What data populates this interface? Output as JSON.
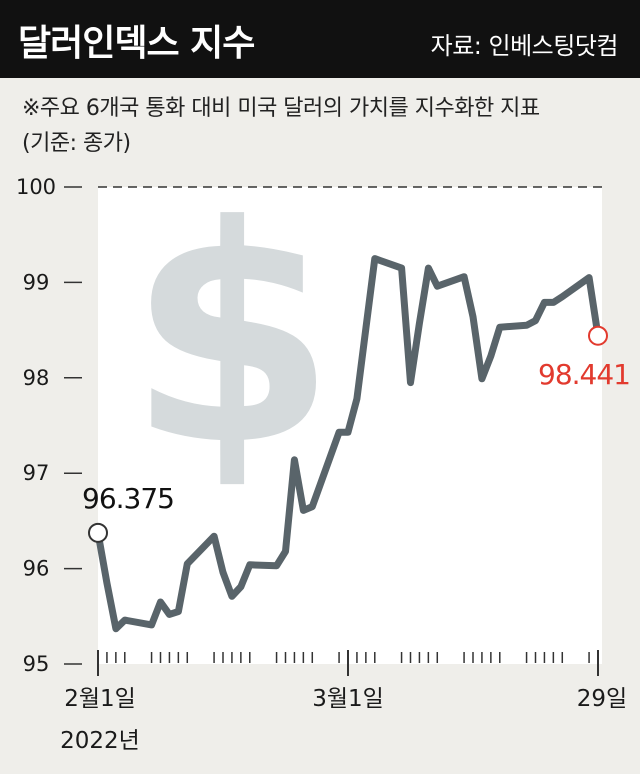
{
  "header": {
    "title": "달러인덱스 지수",
    "source": "자료: 인베스팅닷컴"
  },
  "notes": {
    "line1": "※주요 6개국 통화 대비 미국 달러의 가치를 지수화한 지표",
    "line2": "(기준: 종가)"
  },
  "chart_data": {
    "type": "line",
    "title": "달러인덱스 지수",
    "y_ticks": [
      "100",
      "99",
      "98",
      "97",
      "96",
      "95"
    ],
    "ylim": [
      95,
      100
    ],
    "x_ticks": [
      "2월1일",
      "3월1일",
      "29일"
    ],
    "x_subtitle": "2022년",
    "x_range": [
      "2022-02-01",
      "2022-03-29"
    ],
    "grid": "dashed line at 100",
    "series": [
      {
        "color": "#59646a",
        "x": [
          "2022-02-01",
          "2022-02-02",
          "2022-02-03",
          "2022-02-04",
          "2022-02-07",
          "2022-02-08",
          "2022-02-09",
          "2022-02-10",
          "2022-02-11",
          "2022-02-14",
          "2022-02-15",
          "2022-02-16",
          "2022-02-17",
          "2022-02-18",
          "2022-02-21",
          "2022-02-22",
          "2022-02-23",
          "2022-02-24",
          "2022-02-25",
          "2022-02-28",
          "2022-03-01",
          "2022-03-02",
          "2022-03-03",
          "2022-03-04",
          "2022-03-07",
          "2022-03-08",
          "2022-03-09",
          "2022-03-10",
          "2022-03-11",
          "2022-03-14",
          "2022-03-15",
          "2022-03-16",
          "2022-03-17",
          "2022-03-18",
          "2022-03-21",
          "2022-03-22",
          "2022-03-23",
          "2022-03-24",
          "2022-03-25",
          "2022-03-28",
          "2022-03-29"
        ],
        "values": [
          96.375,
          95.85,
          95.37,
          95.46,
          95.41,
          95.65,
          95.52,
          95.55,
          96.05,
          96.34,
          95.96,
          95.71,
          95.81,
          96.04,
          96.03,
          96.18,
          97.14,
          96.61,
          96.65,
          97.43,
          97.43,
          97.78,
          98.52,
          99.25,
          99.15,
          97.95,
          98.57,
          99.15,
          98.96,
          99.06,
          98.64,
          97.99,
          98.23,
          98.53,
          98.55,
          98.6,
          98.79,
          98.79,
          98.85,
          99.05,
          98.441
        ]
      }
    ],
    "annotations": [
      {
        "label": "96.375",
        "color": "#111111",
        "position": "start"
      },
      {
        "label": "98.441",
        "color": "#e23a2e",
        "position": "end"
      }
    ],
    "background_icon": "dollar-sign-icon"
  }
}
